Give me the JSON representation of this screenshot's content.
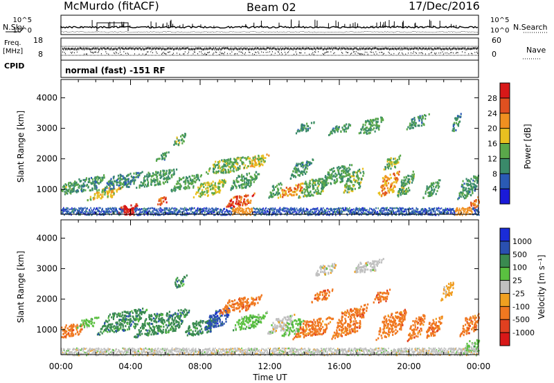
{
  "header": {
    "station": "McMurdo (fitACF)",
    "beam": "Beam 02",
    "date": "17/Dec/2016"
  },
  "status": {
    "nsky_label": "N.Sky",
    "nsearch_label": "N.Search",
    "noise_left_ticks": [
      "10^5",
      "10^0"
    ],
    "noise_right_ticks": [
      "10^5",
      "10^0"
    ],
    "freq_label": "Freq.",
    "freq_unit": "[MHz]",
    "freq_ticks": [
      "18",
      "8"
    ],
    "nave_label": "Nave",
    "nave_ticks": [
      "60",
      "0"
    ],
    "cpid_label": "CPID",
    "cpid_text": "normal (fast) -151 RF"
  },
  "chart_data": [
    {
      "type": "heatmap",
      "name": "power",
      "ylabel": "Slant Range [km]",
      "yticks": [
        1000,
        2000,
        3000,
        4000
      ],
      "ylim": [
        180,
        4600
      ],
      "xlim": [
        0,
        24
      ],
      "x_ticks": [
        "00:00",
        "04:00",
        "08:00",
        "12:00",
        "16:00",
        "20:00",
        "00:00"
      ],
      "colorbar": {
        "label": "Power [dB]",
        "ticks": [
          4,
          8,
          12,
          16,
          20,
          24,
          28
        ],
        "range": [
          0,
          32
        ],
        "colors": [
          "#1a1ad8",
          "#2a5ab4",
          "#3a8a6a",
          "#5aa84a",
          "#e8c020",
          "#f09020",
          "#e05020",
          "#d81818"
        ]
      },
      "patches": [
        {
          "t": 0.2,
          "r": 1050,
          "w": 1.2,
          "h": 400,
          "v": 13
        },
        {
          "t": 1.5,
          "r": 1200,
          "w": 1.6,
          "h": 500,
          "v": 11
        },
        {
          "t": 2.5,
          "r": 900,
          "w": 1.5,
          "h": 350,
          "v": 18
        },
        {
          "t": 3.5,
          "r": 1300,
          "w": 1.8,
          "h": 500,
          "v": 10
        },
        {
          "t": 3.8,
          "r": 400,
          "w": 1.0,
          "h": 250,
          "v": 28
        },
        {
          "t": 5.8,
          "r": 650,
          "w": 0.6,
          "h": 250,
          "v": 26
        },
        {
          "t": 5.5,
          "r": 1400,
          "w": 1.8,
          "h": 500,
          "v": 12
        },
        {
          "t": 5.8,
          "r": 2100,
          "w": 0.6,
          "h": 250,
          "v": 11
        },
        {
          "t": 6.8,
          "r": 2650,
          "w": 0.6,
          "h": 350,
          "v": 13
        },
        {
          "t": 7.2,
          "r": 1250,
          "w": 1.4,
          "h": 450,
          "v": 12
        },
        {
          "t": 8.5,
          "r": 1050,
          "w": 1.6,
          "h": 500,
          "v": 16
        },
        {
          "t": 9.5,
          "r": 1800,
          "w": 2.0,
          "h": 500,
          "v": 14
        },
        {
          "t": 10.3,
          "r": 650,
          "w": 1.4,
          "h": 400,
          "v": 26
        },
        {
          "t": 10.5,
          "r": 1300,
          "w": 1.4,
          "h": 500,
          "v": 12
        },
        {
          "t": 11.2,
          "r": 1950,
          "w": 1.2,
          "h": 400,
          "v": 18
        },
        {
          "t": 12.3,
          "r": 1000,
          "w": 0.6,
          "h": 400,
          "v": 12
        },
        {
          "t": 13.2,
          "r": 1000,
          "w": 1.2,
          "h": 400,
          "v": 22
        },
        {
          "t": 13.8,
          "r": 1700,
          "w": 1.0,
          "h": 500,
          "v": 11
        },
        {
          "t": 14.5,
          "r": 1100,
          "w": 1.4,
          "h": 600,
          "v": 13
        },
        {
          "t": 14.0,
          "r": 3050,
          "w": 0.8,
          "h": 300,
          "v": 10
        },
        {
          "t": 15.8,
          "r": 1500,
          "w": 1.4,
          "h": 600,
          "v": 12
        },
        {
          "t": 16.0,
          "r": 3000,
          "w": 1.0,
          "h": 300,
          "v": 11
        },
        {
          "t": 16.8,
          "r": 1300,
          "w": 1.0,
          "h": 700,
          "v": 14
        },
        {
          "t": 17.8,
          "r": 3100,
          "w": 1.2,
          "h": 500,
          "v": 12
        },
        {
          "t": 18.8,
          "r": 1200,
          "w": 1.0,
          "h": 700,
          "v": 22
        },
        {
          "t": 19.0,
          "r": 1900,
          "w": 0.8,
          "h": 400,
          "v": 14
        },
        {
          "t": 19.8,
          "r": 1200,
          "w": 0.8,
          "h": 700,
          "v": 13
        },
        {
          "t": 20.5,
          "r": 3250,
          "w": 1.0,
          "h": 400,
          "v": 11
        },
        {
          "t": 21.3,
          "r": 1050,
          "w": 0.8,
          "h": 500,
          "v": 12
        },
        {
          "t": 22.7,
          "r": 3200,
          "w": 0.4,
          "h": 500,
          "v": 10
        },
        {
          "t": 23.4,
          "r": 1100,
          "w": 1.0,
          "h": 700,
          "v": 11
        },
        {
          "t": 23.7,
          "r": 550,
          "w": 0.6,
          "h": 400,
          "v": 24
        }
      ],
      "ground": {
        "r_min": 180,
        "r_max": 420,
        "v": 8,
        "hot": [
          [
            3.6,
            4.2,
            30
          ],
          [
            9.8,
            11.0,
            22
          ],
          [
            22.6,
            23.6,
            20
          ]
        ]
      }
    },
    {
      "type": "heatmap",
      "name": "velocity",
      "ylabel": "Slant Range [km]",
      "yticks": [
        1000,
        2000,
        3000,
        4000
      ],
      "ylim": [
        180,
        4600
      ],
      "xlim": [
        0,
        24
      ],
      "xlabel": "Time UT",
      "x_ticks": [
        "00:00",
        "04:00",
        "08:00",
        "12:00",
        "16:00",
        "20:00",
        "00:00"
      ],
      "colorbar": {
        "label": "Velocity [m s⁻¹]",
        "ticks": [
          "1000",
          "500",
          "100",
          "25",
          "-25",
          "-100",
          "-500",
          "-1000"
        ],
        "colors": [
          "#1a2cd8",
          "#2a50b0",
          "#3a8a50",
          "#5ac040",
          "#c0c0c0",
          "#f0a020",
          "#f07820",
          "#e04020",
          "#d81818"
        ]
      },
      "patches": [
        {
          "t": 0.5,
          "r": 1000,
          "w": 1.4,
          "h": 450,
          "c": 6
        },
        {
          "t": 1.5,
          "r": 1250,
          "w": 1.0,
          "h": 300,
          "c": 3
        },
        {
          "t": 3.5,
          "r": 1300,
          "w": 2.2,
          "h": 700,
          "c": 2
        },
        {
          "t": 5.8,
          "r": 1250,
          "w": 2.5,
          "h": 750,
          "c": 2
        },
        {
          "t": 6.8,
          "r": 2600,
          "w": 0.6,
          "h": 350,
          "c": 2
        },
        {
          "t": 8.0,
          "r": 1100,
          "w": 1.6,
          "h": 500,
          "c": 2
        },
        {
          "t": 9.0,
          "r": 1400,
          "w": 1.2,
          "h": 600,
          "c": 1
        },
        {
          "t": 10.3,
          "r": 1850,
          "w": 2.0,
          "h": 500,
          "c": 6
        },
        {
          "t": 10.8,
          "r": 1300,
          "w": 1.6,
          "h": 500,
          "c": 3
        },
        {
          "t": 12.6,
          "r": 1200,
          "w": 1.2,
          "h": 500,
          "c": 4
        },
        {
          "t": 13.3,
          "r": 1100,
          "w": 1.0,
          "h": 500,
          "c": 3
        },
        {
          "t": 14.5,
          "r": 1100,
          "w": 1.8,
          "h": 600,
          "c": 6
        },
        {
          "t": 15.0,
          "r": 2150,
          "w": 1.0,
          "h": 350,
          "c": 6
        },
        {
          "t": 15.2,
          "r": 3000,
          "w": 1.0,
          "h": 350,
          "c": 4
        },
        {
          "t": 16.6,
          "r": 1300,
          "w": 1.6,
          "h": 900,
          "c": 6
        },
        {
          "t": 17.6,
          "r": 3100,
          "w": 1.4,
          "h": 400,
          "c": 4
        },
        {
          "t": 18.4,
          "r": 2100,
          "w": 0.8,
          "h": 400,
          "c": 6
        },
        {
          "t": 19.0,
          "r": 1200,
          "w": 1.4,
          "h": 800,
          "c": 6
        },
        {
          "t": 20.4,
          "r": 1100,
          "w": 0.8,
          "h": 700,
          "c": 6
        },
        {
          "t": 21.4,
          "r": 1100,
          "w": 0.8,
          "h": 600,
          "c": 6
        },
        {
          "t": 22.2,
          "r": 2300,
          "w": 0.6,
          "h": 500,
          "c": 5
        },
        {
          "t": 23.5,
          "r": 1200,
          "w": 0.9,
          "h": 600,
          "c": 6
        },
        {
          "t": 23.6,
          "r": 500,
          "w": 0.8,
          "h": 400,
          "c": 3
        }
      ],
      "ground": {
        "r_min": 180,
        "r_max": 420,
        "c": 4
      }
    }
  ]
}
